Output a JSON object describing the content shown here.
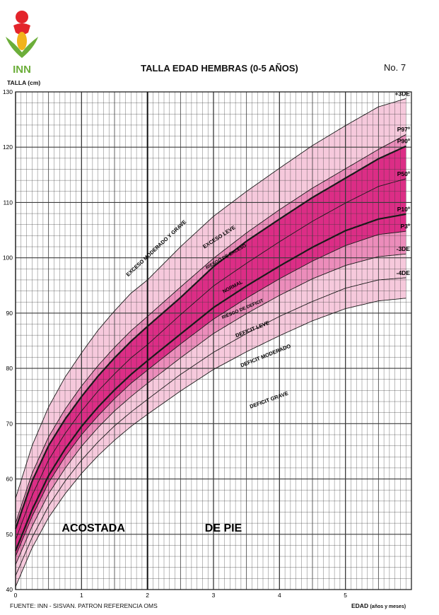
{
  "header": {
    "logo_text": "INN",
    "title": "TALLA EDAD HEMBRAS (0-5 AÑOS)",
    "chart_no": "No. 7"
  },
  "footer": {
    "source": "FUENTE: INN - SISVAN. PATRON REFERENCIA OMS",
    "xlabel_main": "EDAD",
    "xlabel_sub": "(años y meses)"
  },
  "colors": {
    "band_outer": "#f6c9dc",
    "band_mid": "#ec8dbb",
    "band_inner": "#dc2d86",
    "curve": "#1a1a1a",
    "grid": "#3a3a3a"
  },
  "chart_data": {
    "type": "line",
    "title": "TALLA EDAD HEMBRAS (0-5 AÑOS)",
    "ylabel": "TALLA (cm)",
    "xlabel": "EDAD (años y meses)",
    "xlim": [
      0,
      6
    ],
    "ylim": [
      40,
      130
    ],
    "xticks": [
      0,
      1,
      2,
      3,
      4,
      5
    ],
    "yticks": [
      40,
      50,
      60,
      70,
      80,
      90,
      100,
      110,
      120,
      130
    ],
    "grid": true,
    "minor_grid_x_step_months": 1,
    "minor_grid_y_step_cm": 2,
    "x": [
      0,
      0.25,
      0.5,
      0.75,
      1,
      1.25,
      1.5,
      1.75,
      2,
      2.5,
      3,
      3.5,
      4,
      4.5,
      5,
      5.5,
      5.92
    ],
    "series": [
      {
        "name": "+3DE",
        "values": [
          56.5,
          66.0,
          73.0,
          78.4,
          82.8,
          86.9,
          90.4,
          93.6,
          96.0,
          102.0,
          107.5,
          112.0,
          116.2,
          120.3,
          123.9,
          127.3,
          128.8
        ]
      },
      {
        "name": "P97º",
        "values": [
          52.0,
          61.0,
          67.6,
          72.6,
          76.8,
          80.5,
          83.8,
          86.8,
          89.4,
          94.7,
          99.9,
          104.5,
          108.7,
          112.6,
          116.1,
          119.6,
          122.3
        ]
      },
      {
        "name": "P90º",
        "values": [
          51.0,
          59.6,
          66.0,
          70.8,
          74.9,
          78.6,
          81.9,
          84.9,
          87.6,
          92.8,
          98.4,
          103.0,
          107.0,
          110.9,
          114.4,
          117.9,
          120.2
        ]
      },
      {
        "name": "P50º",
        "values": [
          49.0,
          57.0,
          63.4,
          68.2,
          72.3,
          75.9,
          79.0,
          81.9,
          84.3,
          89.7,
          94.9,
          99.0,
          102.9,
          106.6,
          109.9,
          112.9,
          114.3
        ]
      },
      {
        "name": "P10º",
        "values": [
          47.0,
          54.4,
          60.6,
          65.4,
          69.5,
          73.0,
          76.1,
          78.9,
          81.4,
          86.2,
          91.0,
          94.9,
          98.5,
          101.9,
          104.9,
          107.0,
          107.9
        ]
      },
      {
        "name": "P3º",
        "values": [
          46.0,
          53.2,
          59.3,
          64.0,
          68.0,
          71.4,
          74.5,
          77.3,
          79.7,
          84.4,
          88.9,
          92.7,
          96.2,
          99.4,
          102.2,
          104.2,
          104.8
        ]
      },
      {
        "name": "-3DE",
        "values": [
          44.5,
          51.4,
          57.3,
          61.9,
          65.9,
          69.3,
          72.3,
          74.9,
          77.3,
          81.9,
          86.3,
          89.9,
          93.2,
          96.2,
          98.6,
          100.2,
          100.7
        ]
      },
      {
        "name": "-4DE",
        "values": [
          42.5,
          49.4,
          55.1,
          59.6,
          63.4,
          66.7,
          69.6,
          72.1,
          74.4,
          78.9,
          82.9,
          86.3,
          89.4,
          92.1,
          94.5,
          96.0,
          96.4
        ]
      },
      {
        "values": [
          40.5,
          47.5,
          53.0,
          57.3,
          61.0,
          64.2,
          67.0,
          69.5,
          71.7,
          75.9,
          79.8,
          83.0,
          85.9,
          88.6,
          90.8,
          92.2,
          92.7
        ]
      }
    ],
    "zone_labels": [
      "EXCESO MODERADO Y GRAVE",
      "EXCESO LEVE",
      "RIESGO DE EXCESO",
      "NORMAL",
      "RIESGO DE DEFICIT",
      "DEFICIT LEVE",
      "DEFICIT MODERADO",
      "DEFICIT GRAVE"
    ],
    "position_labels": [
      "ACOSTADA",
      "DE PIE"
    ],
    "position_change_x": 2
  }
}
